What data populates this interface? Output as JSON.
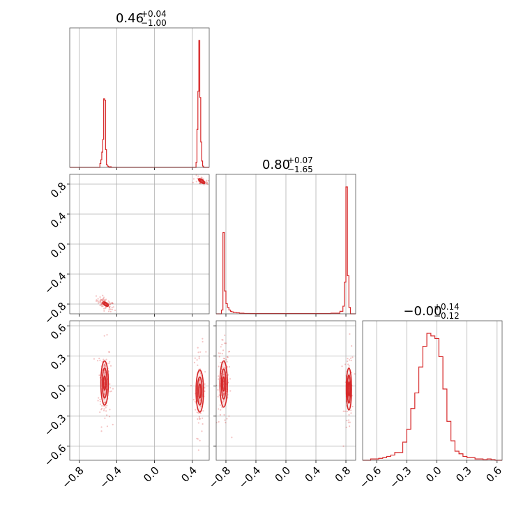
{
  "chart_data": {
    "type": "corner",
    "color": "#d62728",
    "grid": true,
    "axis_ticks": [
      {
        "values": [
          -0.8,
          -0.4,
          0.0,
          0.4
        ],
        "labels": [
          "−0.8",
          "−0.4",
          "0.0",
          "0.4"
        ]
      },
      {
        "values": [
          -0.8,
          -0.4,
          0.0,
          0.4,
          0.8
        ],
        "labels": [
          "−0.8",
          "−0.4",
          "0.0",
          "0.4",
          "0.8"
        ]
      },
      {
        "values": [
          -0.6,
          -0.3,
          0.0,
          0.3,
          0.6
        ],
        "labels": [
          "−0.6",
          "−0.3",
          "0.0",
          "0.3",
          "0.6"
        ]
      }
    ],
    "axis_ranges": [
      [
        -0.9,
        0.58
      ],
      [
        -0.93,
        0.93
      ],
      [
        -0.74,
        0.65
      ]
    ],
    "titles": [
      {
        "main": "0.46",
        "upper": "+0.04",
        "lower": "−1.00"
      },
      {
        "main": "0.80",
        "upper": "+0.07",
        "lower": "−1.65"
      },
      {
        "main": "−0.00",
        "upper": "+0.14",
        "lower": "−0.12"
      }
    ],
    "histograms": [
      {
        "param": 0,
        "bin_edges": [
          -0.9,
          -0.58,
          -0.57,
          -0.56,
          -0.55,
          -0.54,
          -0.53,
          -0.52,
          -0.51,
          -0.5,
          -0.49,
          -0.48,
          -0.47,
          -0.46,
          -0.45,
          0.44,
          0.45,
          0.46,
          0.47,
          0.48,
          0.49,
          0.5,
          0.51,
          0.52,
          0.53,
          0.54,
          0.58
        ],
        "counts": [
          0.0,
          0.03,
          0.06,
          0.12,
          0.22,
          0.54,
          0.53,
          0.14,
          0.02,
          0.01,
          0.005,
          0.0,
          0.005,
          0.0,
          0.0,
          0.04,
          0.3,
          0.6,
          1.0,
          0.55,
          0.2,
          0.05,
          0.01,
          0.0,
          0.0,
          0.0
        ]
      },
      {
        "param": 1,
        "bin_edges": [
          -0.93,
          -0.86,
          -0.84,
          -0.82,
          -0.8,
          -0.78,
          -0.76,
          -0.74,
          -0.72,
          -0.7,
          -0.66,
          -0.62,
          -0.56,
          -0.48,
          0.6,
          0.72,
          0.76,
          0.78,
          0.8,
          0.82,
          0.84,
          0.86,
          0.88,
          0.93
        ],
        "counts": [
          0.0,
          0.03,
          0.64,
          0.18,
          0.08,
          0.05,
          0.03,
          0.02,
          0.015,
          0.01,
          0.008,
          0.005,
          0.003,
          0.002,
          0.005,
          0.02,
          0.06,
          0.25,
          1.0,
          0.3,
          0.05,
          0.0,
          0.0
        ]
      },
      {
        "param": 2,
        "bin_edges": [
          -0.74,
          -0.66,
          -0.62,
          -0.58,
          -0.54,
          -0.5,
          -0.46,
          -0.42,
          -0.38,
          -0.34,
          -0.3,
          -0.26,
          -0.22,
          -0.18,
          -0.14,
          -0.1,
          -0.06,
          -0.02,
          0.02,
          0.06,
          0.1,
          0.14,
          0.18,
          0.22,
          0.26,
          0.3,
          0.34,
          0.38,
          0.42,
          0.46,
          0.5,
          0.54,
          0.58,
          0.65
        ],
        "counts": [
          0.0,
          0.01,
          0.01,
          0.015,
          0.02,
          0.03,
          0.04,
          0.06,
          0.06,
          0.14,
          0.24,
          0.4,
          0.52,
          0.72,
          0.88,
          0.98,
          0.96,
          0.94,
          0.8,
          0.55,
          0.3,
          0.15,
          0.07,
          0.05,
          0.03,
          0.02,
          0.02,
          0.01,
          0.01,
          0.005,
          0.01,
          0.005,
          0.0
        ]
      }
    ],
    "clusters_2d": [
      {
        "x_param": 0,
        "y_param": 1,
        "clusters": [
          {
            "center": [
              -0.52,
              -0.8
            ],
            "spread": [
              0.03,
              0.03
            ],
            "corr": -0.6,
            "n_scatter": 80,
            "contours": [
              [
                0.02,
                0.01
              ],
              [
                0.035,
                0.02
              ]
            ]
          },
          {
            "center": [
              0.5,
              0.84
            ],
            "spread": [
              0.03,
              0.02
            ],
            "corr": -0.4,
            "n_scatter": 30,
            "contours": [
              [
                0.025,
                0.01
              ],
              [
                0.04,
                0.02
              ]
            ]
          }
        ]
      },
      {
        "x_param": 0,
        "y_param": 2,
        "clusters": [
          {
            "center": [
              -0.53,
              0.03
            ],
            "spread": [
              0.02,
              0.13
            ],
            "corr": 0.0,
            "n_scatter": 120,
            "contours": [
              [
                0.012,
                0.07
              ],
              [
                0.025,
                0.15
              ],
              [
                0.04,
                0.22
              ]
            ]
          },
          {
            "center": [
              0.48,
              -0.05
            ],
            "spread": [
              0.02,
              0.14
            ],
            "corr": 0.0,
            "n_scatter": 70,
            "contours": [
              [
                0.012,
                0.07
              ],
              [
                0.025,
                0.14
              ],
              [
                0.04,
                0.21
              ]
            ]
          }
        ]
      },
      {
        "x_param": 1,
        "y_param": 2,
        "clusters": [
          {
            "center": [
              -0.83,
              0.02
            ],
            "spread": [
              0.03,
              0.13
            ],
            "corr": 0.0,
            "n_scatter": 120,
            "contours": [
              [
                0.015,
                0.07
              ],
              [
                0.03,
                0.15
              ],
              [
                0.05,
                0.23
              ]
            ]
          },
          {
            "center": [
              0.84,
              -0.03
            ],
            "spread": [
              0.02,
              0.14
            ],
            "corr": 0.0,
            "n_scatter": 60,
            "contours": [
              [
                0.01,
                0.07
              ],
              [
                0.02,
                0.14
              ],
              [
                0.035,
                0.21
              ]
            ]
          }
        ]
      }
    ]
  }
}
